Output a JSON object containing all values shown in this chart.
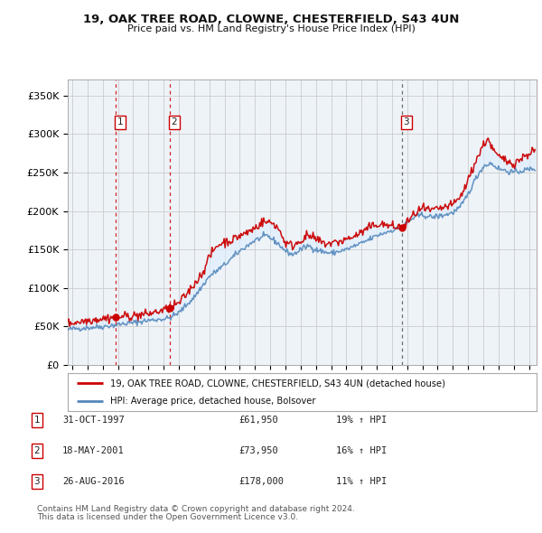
{
  "title1": "19, OAK TREE ROAD, CLOWNE, CHESTERFIELD, S43 4UN",
  "title2": "Price paid vs. HM Land Registry's House Price Index (HPI)",
  "ylabel_ticks": [
    "£0",
    "£50K",
    "£100K",
    "£150K",
    "£200K",
    "£250K",
    "£300K",
    "£350K"
  ],
  "ytick_vals": [
    0,
    50000,
    100000,
    150000,
    200000,
    250000,
    300000,
    350000
  ],
  "ylim": [
    0,
    370000
  ],
  "xlim_start": 1994.7,
  "xlim_end": 2025.5,
  "xtick_years": [
    1995,
    1996,
    1997,
    1998,
    1999,
    2000,
    2001,
    2002,
    2003,
    2004,
    2005,
    2006,
    2007,
    2008,
    2009,
    2010,
    2011,
    2012,
    2013,
    2014,
    2015,
    2016,
    2017,
    2018,
    2019,
    2020,
    2021,
    2022,
    2023,
    2024,
    2025
  ],
  "sale_dates": [
    1997.83,
    2001.38,
    2016.65
  ],
  "sale_prices": [
    61950,
    73950,
    178000
  ],
  "sale_labels": [
    "1",
    "2",
    "3"
  ],
  "sale3_line_color": "#555555",
  "legend_line1": "19, OAK TREE ROAD, CLOWNE, CHESTERFIELD, S43 4UN (detached house)",
  "legend_line2": "HPI: Average price, detached house, Bolsover",
  "table_rows": [
    {
      "num": "1",
      "date": "31-OCT-1997",
      "price": "£61,950",
      "hpi": "19% ↑ HPI"
    },
    {
      "num": "2",
      "date": "18-MAY-2001",
      "price": "£73,950",
      "hpi": "16% ↑ HPI"
    },
    {
      "num": "3",
      "date": "26-AUG-2016",
      "price": "£178,000",
      "hpi": "11% ↑ HPI"
    }
  ],
  "footer1": "Contains HM Land Registry data © Crown copyright and database right 2024.",
  "footer2": "This data is licensed under the Open Government Licence v3.0.",
  "red_color": "#cc0000",
  "blue_color": "#5588bb",
  "fill_color": "#ddeeff",
  "bg_color": "#ffffff",
  "grid_color": "#cccccc",
  "plot_bg": "#eef3f8"
}
